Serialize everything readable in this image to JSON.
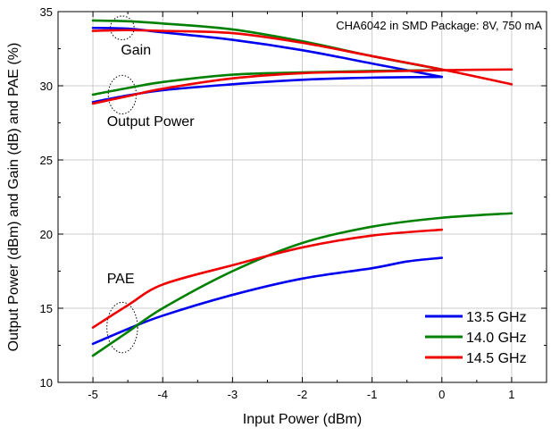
{
  "chart_data": {
    "type": "line",
    "title": "CHA6042 in SMD Package: 8V, 750 mA",
    "xlabel": "Input Power (dBm)",
    "ylabel": "Output Power (dBm) and Gain (dB) and PAE (%)",
    "xlim": [
      -5.5,
      1.5
    ],
    "ylim": [
      10,
      35
    ],
    "xticks": [
      -5,
      -4,
      -3,
      -2,
      -1,
      0,
      1
    ],
    "yticks": [
      10,
      15,
      20,
      25,
      30,
      35
    ],
    "grid": true,
    "legend": {
      "position": "bottom-right"
    },
    "annotations": [
      {
        "text": "Gain",
        "x": -4.6,
        "y": 32.1
      },
      {
        "text": "Output Power",
        "x": -4.8,
        "y": 27.3
      },
      {
        "text": "PAE",
        "x": -4.8,
        "y": 16.7
      }
    ],
    "series": [
      {
        "name": "13.5 GHz",
        "color": "#0000ee",
        "group": "Gain",
        "x": [
          -5,
          -4.5,
          -4,
          -3,
          -2,
          -1,
          0
        ],
        "y": [
          33.9,
          33.85,
          33.6,
          33.1,
          32.4,
          31.5,
          30.6
        ]
      },
      {
        "name": "14.0 GHz",
        "color": "#008000",
        "group": "Gain",
        "x": [
          -5,
          -4.5,
          -4,
          -3,
          -2,
          -1,
          0
        ],
        "y": [
          34.4,
          34.35,
          34.2,
          33.8,
          33.0,
          32.0,
          31.1
        ]
      },
      {
        "name": "14.5 GHz",
        "color": "#ee0000",
        "group": "Gain",
        "x": [
          -5,
          -4.5,
          -4,
          -3,
          -2,
          -1,
          0,
          1
        ],
        "y": [
          33.7,
          33.75,
          33.7,
          33.55,
          32.9,
          32.0,
          31.1,
          30.1
        ]
      },
      {
        "name": "13.5 GHz",
        "color": "#0000ee",
        "group": "Output Power",
        "x": [
          -5,
          -4.5,
          -4,
          -3,
          -2,
          -1,
          0
        ],
        "y": [
          28.9,
          29.35,
          29.7,
          30.1,
          30.4,
          30.55,
          30.6
        ]
      },
      {
        "name": "14.0 GHz",
        "color": "#008000",
        "group": "Output Power",
        "x": [
          -5,
          -4.5,
          -4,
          -3,
          -2,
          -1,
          0
        ],
        "y": [
          29.4,
          29.85,
          30.25,
          30.75,
          30.9,
          31.0,
          31.05
        ]
      },
      {
        "name": "14.5 GHz",
        "color": "#ee0000",
        "group": "Output Power",
        "x": [
          -5,
          -4.5,
          -4,
          -3,
          -2,
          -1,
          0,
          1
        ],
        "y": [
          28.8,
          29.3,
          29.8,
          30.5,
          30.85,
          30.95,
          31.05,
          31.1
        ]
      },
      {
        "name": "13.5 GHz",
        "color": "#0000ee",
        "group": "PAE",
        "x": [
          -5,
          -4.5,
          -4,
          -3,
          -2,
          -1,
          -0.5,
          0
        ],
        "y": [
          12.6,
          13.6,
          14.5,
          15.9,
          17.0,
          17.7,
          18.15,
          18.4
        ]
      },
      {
        "name": "14.0 GHz",
        "color": "#008000",
        "group": "PAE",
        "x": [
          -5,
          -4.5,
          -4,
          -3,
          -2,
          -1,
          0,
          1
        ],
        "y": [
          11.8,
          13.4,
          15.0,
          17.5,
          19.4,
          20.5,
          21.1,
          21.4
        ]
      },
      {
        "name": "14.5 GHz",
        "color": "#ee0000",
        "group": "PAE",
        "x": [
          -5,
          -4.5,
          -4,
          -3,
          -2,
          -1,
          0
        ],
        "y": [
          13.7,
          15.2,
          16.6,
          17.9,
          19.1,
          19.9,
          20.3
        ]
      }
    ],
    "legend_entries": [
      {
        "name": "13.5 GHz",
        "color": "#0000ee"
      },
      {
        "name": "14.0 GHz",
        "color": "#008000"
      },
      {
        "name": "14.5 GHz",
        "color": "#ee0000"
      }
    ]
  }
}
